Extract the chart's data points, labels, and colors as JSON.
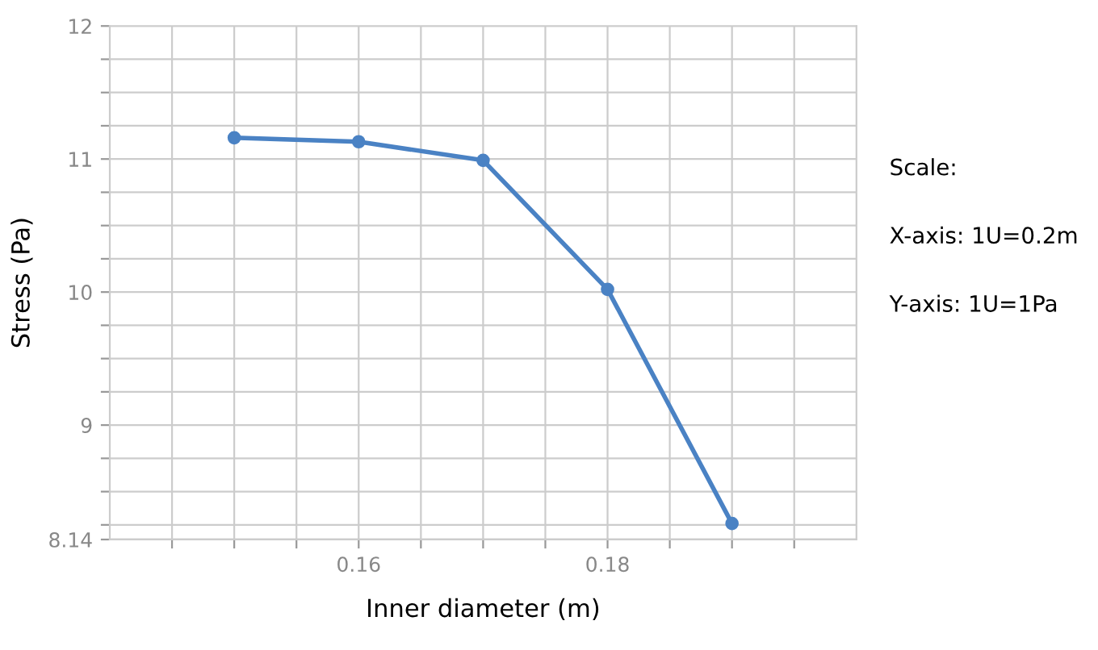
{
  "chart_data": {
    "type": "line",
    "xlabel": "Inner diameter (m)",
    "ylabel": "Stress (Pa)",
    "x": [
      0.15,
      0.16,
      0.17,
      0.18,
      0.19
    ],
    "series": [
      {
        "color": "#4a82c4",
        "values": [
          11.16,
          11.13,
          10.99,
          10.02,
          8.26
        ]
      }
    ],
    "xlim": [
      0.14,
      0.2
    ],
    "ylim": [
      8.14,
      12
    ],
    "xticks": [
      {
        "value": 0.145,
        "label": null
      },
      {
        "value": 0.15,
        "label": null
      },
      {
        "value": 0.155,
        "label": null
      },
      {
        "value": 0.16,
        "label": "0.16"
      },
      {
        "value": 0.165,
        "label": null
      },
      {
        "value": 0.17,
        "label": null
      },
      {
        "value": 0.175,
        "label": null
      },
      {
        "value": 0.18,
        "label": "0.18"
      },
      {
        "value": 0.185,
        "label": null
      },
      {
        "value": 0.19,
        "label": null
      },
      {
        "value": 0.195,
        "label": null
      }
    ],
    "yticks": [
      {
        "value": 8.14,
        "label": "8.14"
      },
      {
        "value": 8.25,
        "label": null
      },
      {
        "value": 8.5,
        "label": null
      },
      {
        "value": 8.75,
        "label": null
      },
      9,
      {
        "value": 9.25,
        "label": null
      },
      {
        "value": 9.5,
        "label": null
      },
      {
        "value": 9.75,
        "label": null
      },
      10,
      {
        "value": 10.25,
        "label": null
      },
      {
        "value": 10.5,
        "label": null
      },
      {
        "value": 10.75,
        "label": null
      },
      11,
      {
        "value": 11.25,
        "label": null
      },
      {
        "value": 11.5,
        "label": null
      },
      {
        "value": 11.75,
        "label": null
      },
      12
    ],
    "grid": true,
    "marker": "circle",
    "line_style": "solid",
    "legend": false,
    "annotations": [
      "Scale:",
      "X-axis: 1U=0.2m",
      "Y-axis: 1U=1Pa"
    ]
  }
}
